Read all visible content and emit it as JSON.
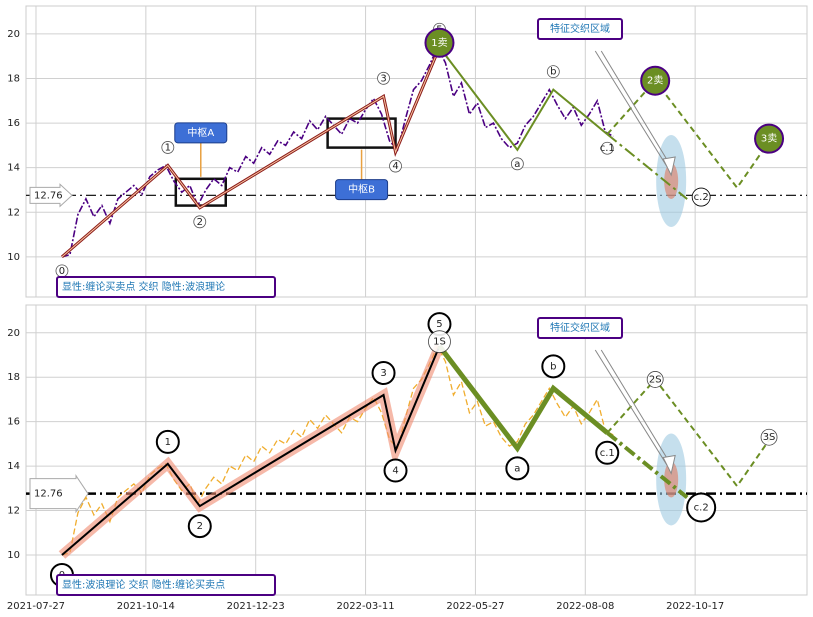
{
  "chart_data": [
    {
      "type": "line",
      "xlim": [
        -5,
        386
      ],
      "ylim": [
        8.2,
        21.25
      ],
      "yticks": [
        10,
        12,
        14,
        16,
        18,
        20
      ],
      "grid": true,
      "x": [
        13,
        17,
        21,
        25,
        29,
        33,
        37,
        41,
        45,
        49,
        53,
        57,
        61,
        65,
        69,
        73,
        77,
        81,
        85,
        89,
        93,
        97,
        101,
        105,
        109,
        113,
        117,
        121,
        125,
        129,
        133,
        137,
        141,
        145,
        149,
        153,
        157,
        161,
        165,
        169,
        173,
        177,
        181,
        185,
        189,
        193,
        197,
        201,
        205,
        209,
        213,
        217,
        221,
        225,
        229,
        233,
        237,
        241,
        245,
        249,
        253,
        257,
        261,
        265,
        269,
        273,
        277,
        281,
        285,
        289
      ],
      "series": [
        {
          "color": "#4b0082",
          "values": [
            10.0,
            10.1,
            11.9,
            12.6,
            11.8,
            12.3,
            11.5,
            12.6,
            12.9,
            13.2,
            12.8,
            13.6,
            13.9,
            14.1,
            13.4,
            12.9,
            13.2,
            12.3,
            13.0,
            13.5,
            13.2,
            14.0,
            13.8,
            14.5,
            14.2,
            14.9,
            14.6,
            15.2,
            15.0,
            15.6,
            15.3,
            16.1,
            15.7,
            16.3,
            15.9,
            15.5,
            16.2,
            16.0,
            16.6,
            17.1,
            16.4,
            15.2,
            14.8,
            16.2,
            17.5,
            17.9,
            18.6,
            19.4,
            18.7,
            17.2,
            17.8,
            16.4,
            16.9,
            15.8,
            16.0,
            15.3,
            14.9,
            15.1,
            15.9,
            16.3,
            16.9,
            17.5,
            16.8,
            16.2,
            16.7,
            15.9,
            16.4,
            17.0,
            15.6,
            15.4
          ]
        }
      ],
      "wave_x": [
        13,
        66,
        82,
        174,
        180,
        202,
        241,
        259,
        286
      ],
      "wave_values": [
        10.0,
        14.1,
        12.2,
        17.2,
        14.7,
        19.4,
        14.8,
        17.5,
        15.5
      ],
      "wave_labels": [
        "0",
        "1",
        "2",
        "3",
        "4",
        "5",
        "a",
        "b",
        "c.1"
      ],
      "forecast_x": [
        286,
        310,
        351,
        368
      ],
      "forecast_values": [
        15.5,
        17.9,
        13.1,
        15.3
      ],
      "level": 12.76,
      "target": {
        "label": "c.2",
        "x": 318,
        "y": 13.4
      },
      "signals": [
        {
          "label": "1卖",
          "x": 202,
          "y": 19.6
        },
        {
          "label": "2卖",
          "x": 310,
          "y": 17.9
        },
        {
          "label": "3卖",
          "x": 367,
          "y": 15.3
        }
      ],
      "centers": [
        {
          "label": "中枢A",
          "x": [
            70,
            95
          ],
          "y": [
            12.3,
            13.5
          ]
        },
        {
          "label": "中枢B",
          "x": [
            146,
            180
          ],
          "y": [
            14.9,
            16.2
          ]
        }
      ],
      "zone_label": "特征交织区域",
      "footer": "显性:缠论买卖点 交织 隐性:波浪理论"
    },
    {
      "type": "line",
      "xlim": [
        -5,
        386
      ],
      "ylim": [
        8.2,
        21.25
      ],
      "yticks": [
        10,
        12,
        14,
        16,
        18,
        20
      ],
      "grid": true,
      "xticks": [
        {
          "value": 0,
          "label": "2021-07-27"
        },
        {
          "value": 55,
          "label": "2021-10-14"
        },
        {
          "value": 110,
          "label": "2021-12-23"
        },
        {
          "value": 165,
          "label": "2022-03-11"
        },
        {
          "value": 220,
          "label": "2022-05-27"
        },
        {
          "value": 275,
          "label": "2022-08-08"
        },
        {
          "value": 330,
          "label": "2022-10-17"
        }
      ],
      "x": [
        13,
        17,
        21,
        25,
        29,
        33,
        37,
        41,
        45,
        49,
        53,
        57,
        61,
        65,
        69,
        73,
        77,
        81,
        85,
        89,
        93,
        97,
        101,
        105,
        109,
        113,
        117,
        121,
        125,
        129,
        133,
        137,
        141,
        145,
        149,
        153,
        157,
        161,
        165,
        169,
        173,
        177,
        181,
        185,
        189,
        193,
        197,
        201,
        205,
        209,
        213,
        217,
        221,
        225,
        229,
        233,
        237,
        241,
        245,
        249,
        253,
        257,
        261,
        265,
        269,
        273,
        277,
        281,
        285,
        289
      ],
      "series": [
        {
          "color": "#f0ad2e",
          "values": [
            10.0,
            10.1,
            11.9,
            12.6,
            11.8,
            12.3,
            11.5,
            12.6,
            12.9,
            13.2,
            12.8,
            13.6,
            13.9,
            14.1,
            13.4,
            12.9,
            13.2,
            12.3,
            13.0,
            13.5,
            13.2,
            14.0,
            13.8,
            14.5,
            14.2,
            14.9,
            14.6,
            15.2,
            15.0,
            15.6,
            15.3,
            16.1,
            15.7,
            16.3,
            15.9,
            15.5,
            16.2,
            16.0,
            16.6,
            17.1,
            16.4,
            15.2,
            14.8,
            16.2,
            17.5,
            17.9,
            18.6,
            19.4,
            18.7,
            17.2,
            17.8,
            16.4,
            16.9,
            15.8,
            16.0,
            15.3,
            14.9,
            15.1,
            15.9,
            16.3,
            16.9,
            17.5,
            16.8,
            16.2,
            16.7,
            15.9,
            16.4,
            17.0,
            15.6,
            15.4
          ]
        }
      ],
      "wave_x": [
        13,
        66,
        82,
        174,
        180,
        202,
        241,
        259,
        286
      ],
      "wave_values": [
        10.0,
        14.1,
        12.2,
        17.2,
        14.7,
        19.4,
        14.8,
        17.5,
        15.5
      ],
      "wave_labels": [
        "0",
        "1",
        "2",
        "3",
        "4",
        "5",
        "a",
        "b",
        "c.1"
      ],
      "forecast_x": [
        286,
        310,
        351,
        368
      ],
      "forecast_values": [
        15.5,
        17.9,
        13.1,
        15.3
      ],
      "level": 12.76,
      "target": {
        "label": "c.2",
        "x": 318,
        "y": 13.4
      },
      "signals": [
        {
          "label": "1S",
          "x": 202,
          "y": 19.6
        },
        {
          "label": "2S",
          "x": 310,
          "y": 17.9
        },
        {
          "label": "3S",
          "x": 367,
          "y": 15.3
        }
      ],
      "zone_label": "特征交织区域",
      "footer": "显性:波浪理论 交织 隐性:缠论买卖点"
    }
  ]
}
